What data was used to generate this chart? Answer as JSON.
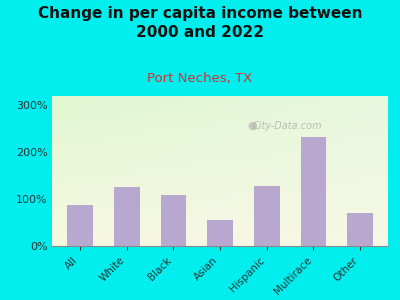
{
  "title": "Change in per capita income between\n2000 and 2022",
  "subtitle": "Port Neches, TX",
  "categories": [
    "All",
    "White",
    "Black",
    "Asian",
    "Hispanic",
    "Multirace",
    "Other"
  ],
  "values": [
    88,
    125,
    108,
    55,
    128,
    232,
    70
  ],
  "bar_color": "#b8a8d0",
  "title_fontsize": 11,
  "subtitle_color": "#cc3333",
  "subtitle_fontsize": 9.5,
  "background_color": "#00eeee",
  "ylim": [
    0,
    320
  ],
  "yticks": [
    0,
    100,
    200,
    300
  ],
  "watermark": "City-Data.com"
}
